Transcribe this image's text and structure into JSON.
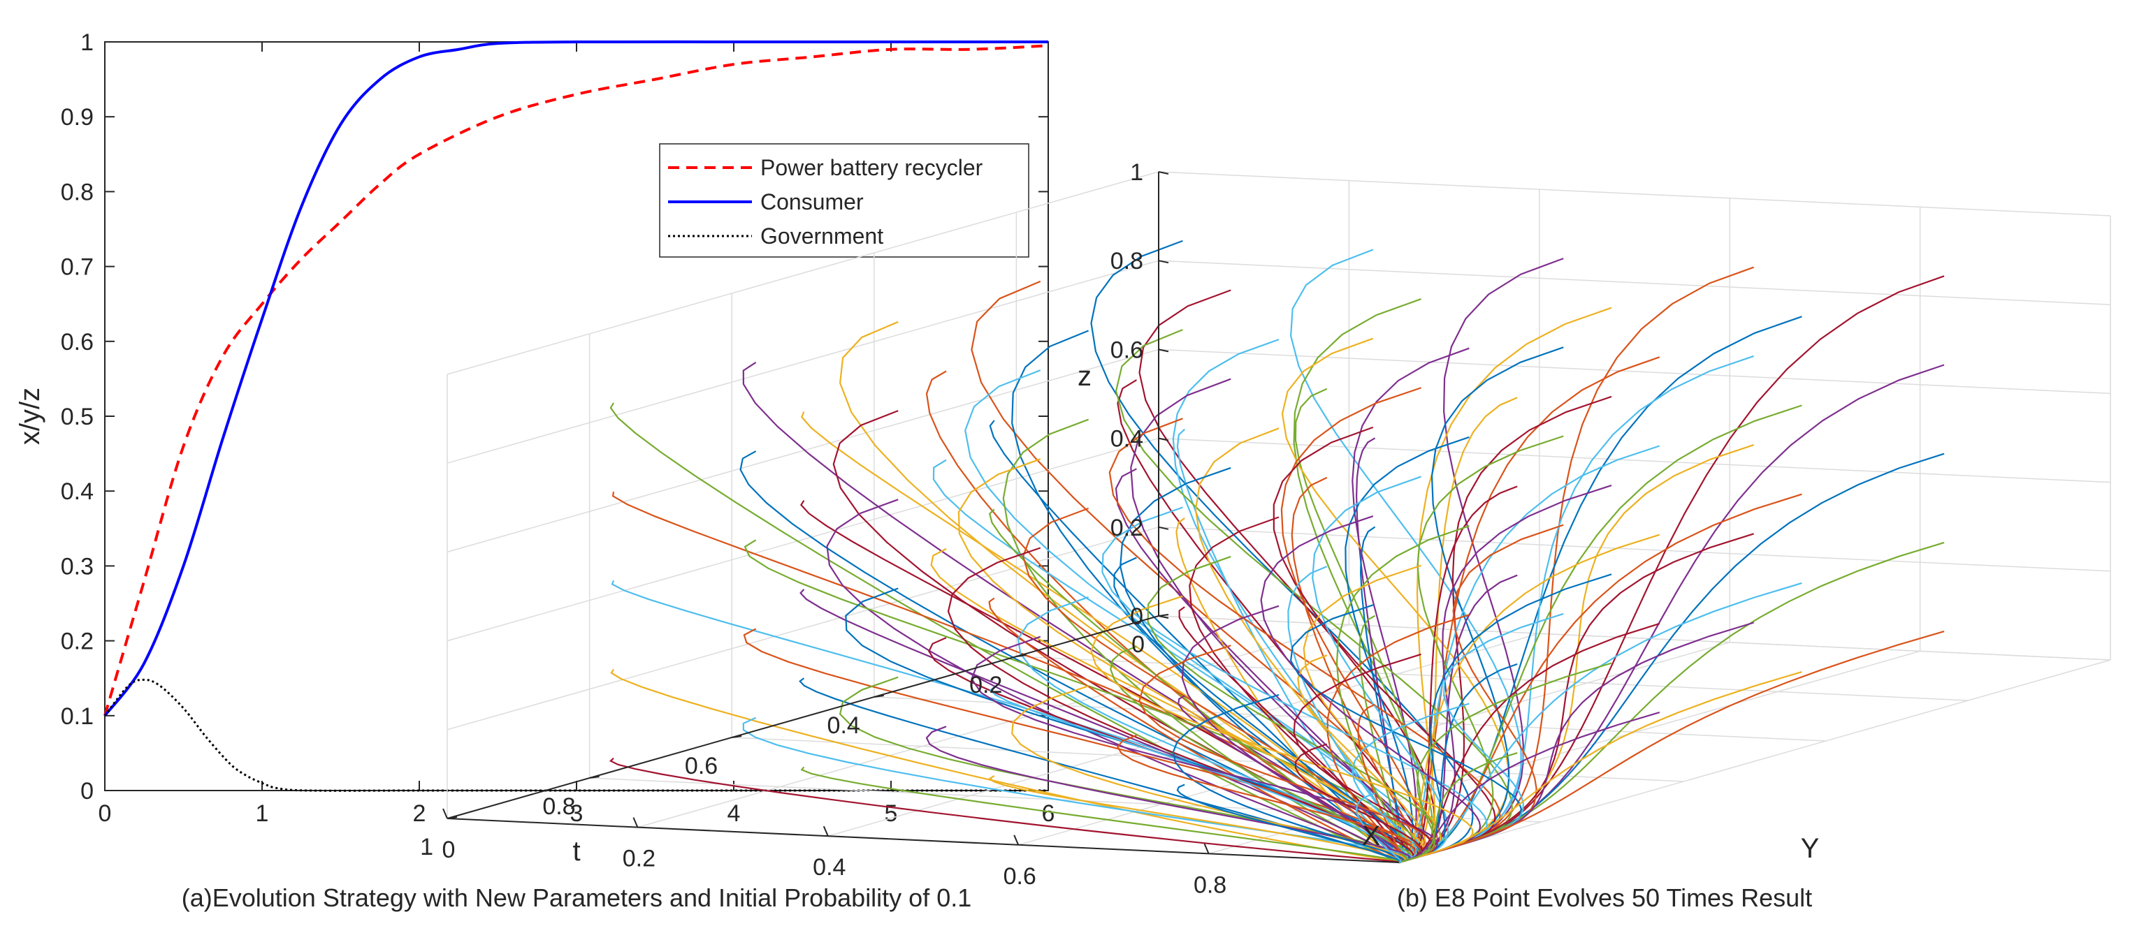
{
  "chart_data": [
    {
      "type": "line",
      "caption": "(a)Evolution Strategy with New Parameters and Initial Probability of 0.1",
      "xlabel": "t",
      "ylabel": "x/y/z",
      "xlim": [
        0,
        6
      ],
      "ylim": [
        0,
        1
      ],
      "xticks": [
        "0",
        "1",
        "2",
        "3",
        "4",
        "5",
        "6"
      ],
      "yticks": [
        "0",
        "0.1",
        "0.2",
        "0.3",
        "0.4",
        "0.5",
        "0.6",
        "0.7",
        "0.8",
        "0.9",
        "1"
      ],
      "legend_position": "upper-right",
      "grid": false,
      "series": [
        {
          "name": "Power battery recycler",
          "color": "#ff0000",
          "style": "dashed",
          "x": [
            0,
            0.25,
            0.5,
            0.75,
            1,
            1.25,
            1.5,
            1.75,
            2,
            2.5,
            3,
            3.5,
            4,
            4.5,
            5,
            5.5,
            6
          ],
          "y": [
            0.1,
            0.28,
            0.46,
            0.58,
            0.65,
            0.71,
            0.76,
            0.81,
            0.85,
            0.9,
            0.93,
            0.95,
            0.97,
            0.98,
            0.99,
            0.99,
            0.995
          ]
        },
        {
          "name": "Consumer",
          "color": "#0000ff",
          "style": "solid",
          "x": [
            0,
            0.25,
            0.5,
            0.75,
            1,
            1.25,
            1.5,
            1.75,
            2,
            2.25,
            2.5,
            3,
            4,
            5,
            6
          ],
          "y": [
            0.1,
            0.17,
            0.3,
            0.47,
            0.63,
            0.78,
            0.89,
            0.95,
            0.98,
            0.99,
            0.998,
            1,
            1,
            1,
            1
          ]
        },
        {
          "name": "Government",
          "color": "#000000",
          "style": "dotted",
          "x": [
            0,
            0.15,
            0.25,
            0.35,
            0.5,
            0.65,
            0.8,
            0.9,
            1.0,
            1.1,
            1.3,
            2,
            3,
            4,
            5,
            6
          ],
          "y": [
            0.1,
            0.14,
            0.148,
            0.14,
            0.11,
            0.07,
            0.035,
            0.02,
            0.01,
            0.003,
            0,
            0,
            0,
            0,
            0,
            0
          ]
        }
      ]
    },
    {
      "type": "line3d",
      "caption": "(b) E8 Point Evolves 50 Times Result",
      "xlabel": "X",
      "ylabel": "Y",
      "zlabel": "z",
      "xlim": [
        0,
        1
      ],
      "ylim": [
        0,
        1
      ],
      "zlim": [
        0,
        1
      ],
      "xticks": [
        "0",
        "0.2",
        "0.4",
        "0.6",
        "0.8",
        "1"
      ],
      "yticks": [
        "0",
        "0.2",
        "0.4",
        "0.6",
        "0.8"
      ],
      "zticks": [
        "0",
        "0.2",
        "0.4",
        "0.6",
        "0.8",
        "1"
      ],
      "grid": true,
      "converge_point": [
        1,
        1,
        0
      ],
      "colors": [
        "#0072bd",
        "#d95319",
        "#edb120",
        "#7e2f8e",
        "#77ac30",
        "#4dbeee",
        "#a2142f"
      ],
      "trajectories": [
        [
          0.1,
          0.1,
          0.9
        ],
        [
          0.3,
          0.1,
          0.9
        ],
        [
          0.5,
          0.1,
          0.9
        ],
        [
          0.7,
          0.1,
          0.9
        ],
        [
          0.9,
          0.1,
          0.9
        ],
        [
          0.1,
          0.3,
          0.9
        ],
        [
          0.3,
          0.3,
          0.9
        ],
        [
          0.5,
          0.3,
          0.9
        ],
        [
          0.7,
          0.3,
          0.9
        ],
        [
          0.9,
          0.3,
          0.9
        ],
        [
          0.1,
          0.5,
          0.9
        ],
        [
          0.3,
          0.5,
          0.9
        ],
        [
          0.5,
          0.5,
          0.9
        ],
        [
          0.7,
          0.5,
          0.9
        ],
        [
          0.9,
          0.5,
          0.9
        ],
        [
          0.1,
          0.7,
          0.9
        ],
        [
          0.3,
          0.7,
          0.9
        ],
        [
          0.5,
          0.7,
          0.9
        ],
        [
          0.7,
          0.7,
          0.9
        ],
        [
          0.9,
          0.7,
          0.9
        ],
        [
          0.1,
          0.9,
          0.9
        ],
        [
          0.3,
          0.9,
          0.9
        ],
        [
          0.5,
          0.9,
          0.9
        ],
        [
          0.7,
          0.9,
          0.9
        ],
        [
          0.9,
          0.9,
          0.9
        ],
        [
          0.1,
          0.1,
          0.7
        ],
        [
          0.3,
          0.1,
          0.7
        ],
        [
          0.5,
          0.1,
          0.7
        ],
        [
          0.7,
          0.1,
          0.7
        ],
        [
          0.9,
          0.1,
          0.7
        ],
        [
          0.1,
          0.3,
          0.7
        ],
        [
          0.3,
          0.3,
          0.7
        ],
        [
          0.5,
          0.3,
          0.7
        ],
        [
          0.7,
          0.3,
          0.7
        ],
        [
          0.9,
          0.3,
          0.7
        ],
        [
          0.1,
          0.5,
          0.7
        ],
        [
          0.3,
          0.5,
          0.7
        ],
        [
          0.5,
          0.5,
          0.7
        ],
        [
          0.7,
          0.5,
          0.7
        ],
        [
          0.9,
          0.5,
          0.7
        ],
        [
          0.1,
          0.7,
          0.7
        ],
        [
          0.3,
          0.7,
          0.7
        ],
        [
          0.5,
          0.7,
          0.7
        ],
        [
          0.7,
          0.7,
          0.7
        ],
        [
          0.9,
          0.7,
          0.7
        ],
        [
          0.1,
          0.9,
          0.7
        ],
        [
          0.3,
          0.9,
          0.7
        ],
        [
          0.5,
          0.9,
          0.7
        ],
        [
          0.7,
          0.9,
          0.7
        ],
        [
          0.9,
          0.9,
          0.7
        ],
        [
          0.1,
          0.1,
          0.5
        ],
        [
          0.3,
          0.1,
          0.5
        ],
        [
          0.5,
          0.1,
          0.5
        ],
        [
          0.7,
          0.1,
          0.5
        ],
        [
          0.9,
          0.1,
          0.5
        ],
        [
          0.1,
          0.3,
          0.5
        ],
        [
          0.3,
          0.3,
          0.5
        ],
        [
          0.5,
          0.3,
          0.5
        ],
        [
          0.7,
          0.3,
          0.5
        ],
        [
          0.9,
          0.3,
          0.5
        ],
        [
          0.1,
          0.5,
          0.5
        ],
        [
          0.3,
          0.5,
          0.5
        ],
        [
          0.5,
          0.5,
          0.5
        ],
        [
          0.7,
          0.5,
          0.5
        ],
        [
          0.9,
          0.5,
          0.5
        ],
        [
          0.1,
          0.7,
          0.5
        ],
        [
          0.3,
          0.7,
          0.5
        ],
        [
          0.5,
          0.7,
          0.5
        ],
        [
          0.7,
          0.7,
          0.5
        ],
        [
          0.9,
          0.7,
          0.5
        ],
        [
          0.1,
          0.9,
          0.5
        ],
        [
          0.3,
          0.9,
          0.5
        ],
        [
          0.5,
          0.9,
          0.5
        ],
        [
          0.7,
          0.9,
          0.5
        ],
        [
          0.9,
          0.9,
          0.5
        ],
        [
          0.1,
          0.1,
          0.3
        ],
        [
          0.3,
          0.1,
          0.3
        ],
        [
          0.5,
          0.1,
          0.3
        ],
        [
          0.7,
          0.1,
          0.3
        ],
        [
          0.9,
          0.1,
          0.3
        ],
        [
          0.1,
          0.3,
          0.3
        ],
        [
          0.3,
          0.3,
          0.3
        ],
        [
          0.5,
          0.3,
          0.3
        ],
        [
          0.7,
          0.3,
          0.3
        ],
        [
          0.9,
          0.3,
          0.3
        ],
        [
          0.1,
          0.5,
          0.3
        ],
        [
          0.3,
          0.5,
          0.3
        ],
        [
          0.5,
          0.5,
          0.3
        ],
        [
          0.7,
          0.5,
          0.3
        ],
        [
          0.9,
          0.5,
          0.3
        ],
        [
          0.1,
          0.7,
          0.3
        ],
        [
          0.3,
          0.7,
          0.3
        ],
        [
          0.5,
          0.7,
          0.3
        ],
        [
          0.7,
          0.7,
          0.3
        ],
        [
          0.9,
          0.7,
          0.3
        ],
        [
          0.1,
          0.9,
          0.3
        ],
        [
          0.3,
          0.9,
          0.3
        ],
        [
          0.5,
          0.9,
          0.3
        ],
        [
          0.7,
          0.9,
          0.3
        ],
        [
          0.9,
          0.9,
          0.3
        ],
        [
          0.1,
          0.1,
          0.1
        ],
        [
          0.3,
          0.1,
          0.1
        ],
        [
          0.5,
          0.1,
          0.1
        ],
        [
          0.7,
          0.1,
          0.1
        ],
        [
          0.9,
          0.1,
          0.1
        ],
        [
          0.1,
          0.3,
          0.1
        ],
        [
          0.3,
          0.3,
          0.1
        ],
        [
          0.5,
          0.3,
          0.1
        ],
        [
          0.7,
          0.3,
          0.1
        ],
        [
          0.9,
          0.3,
          0.1
        ],
        [
          0.1,
          0.5,
          0.1
        ],
        [
          0.3,
          0.5,
          0.1
        ],
        [
          0.5,
          0.5,
          0.1
        ],
        [
          0.7,
          0.5,
          0.1
        ],
        [
          0.9,
          0.5,
          0.1
        ],
        [
          0.1,
          0.7,
          0.1
        ],
        [
          0.3,
          0.7,
          0.1
        ],
        [
          0.5,
          0.7,
          0.1
        ],
        [
          0.7,
          0.7,
          0.1
        ],
        [
          0.9,
          0.7,
          0.1
        ],
        [
          0.1,
          0.9,
          0.1
        ],
        [
          0.3,
          0.9,
          0.1
        ],
        [
          0.5,
          0.9,
          0.1
        ],
        [
          0.7,
          0.9,
          0.1
        ],
        [
          0.9,
          0.9,
          0.1
        ]
      ]
    }
  ]
}
